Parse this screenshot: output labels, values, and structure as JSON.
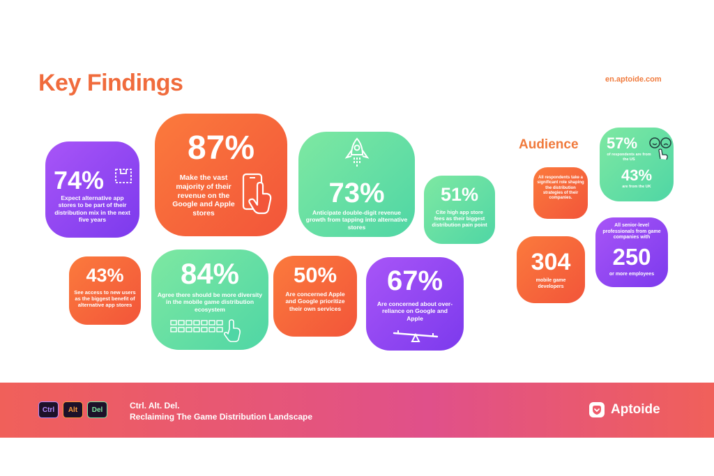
{
  "header": {
    "title": "Key Findings",
    "site": "en.aptoide.com"
  },
  "findings": [
    {
      "value": "74%",
      "text": "Expect alternative app stores to be part of their distribution mix in the next five years",
      "icon": "box-icon"
    },
    {
      "value": "87%",
      "text": "Make the vast majority of their revenue on the Google and Apple stores",
      "icon": "phone-tap-icon"
    },
    {
      "value": "73%",
      "text": "Anticipate double-digit revenue growth from tapping into alternative stores",
      "icon": "rocket-icon"
    },
    {
      "value": "51%",
      "text": "Cite high app store fees as their biggest distribution pain point"
    },
    {
      "value": "43%",
      "text": "See access to new users as the biggest benefit of alternative app stores"
    },
    {
      "value": "84%",
      "text": "Agree there should be more diversity in the mobile game distribution ecosystem",
      "icon": "keyboard-icon"
    },
    {
      "value": "50%",
      "text": "Are concerned Apple and Google prioritize their own services"
    },
    {
      "value": "67%",
      "text": "Are concerned about over-reliance on Google and Apple",
      "icon": "seesaw-icon"
    }
  ],
  "audience": {
    "title": "Audience",
    "roles": "All respondents take a significant role shaping the distribution strategies of their companies.",
    "us_value": "57%",
    "us_text": "of respondents are from the US",
    "uk_value": "43%",
    "uk_text": "are from the UK",
    "developers_value": "304",
    "developers_text": "mobile game developers",
    "companies_intro": "All senior-level professionals from game companies with",
    "companies_value": "250",
    "companies_text": "or more employees"
  },
  "footer": {
    "keys": [
      "Ctrl",
      "Alt",
      "Del"
    ],
    "key_colors": [
      "#b48cff",
      "#ff9a3c",
      "#7ee8a2"
    ],
    "line1": "Ctrl. Alt. Del.",
    "line2": "Reclaiming The Game Distribution Landscape",
    "brand": "Aptoide"
  }
}
